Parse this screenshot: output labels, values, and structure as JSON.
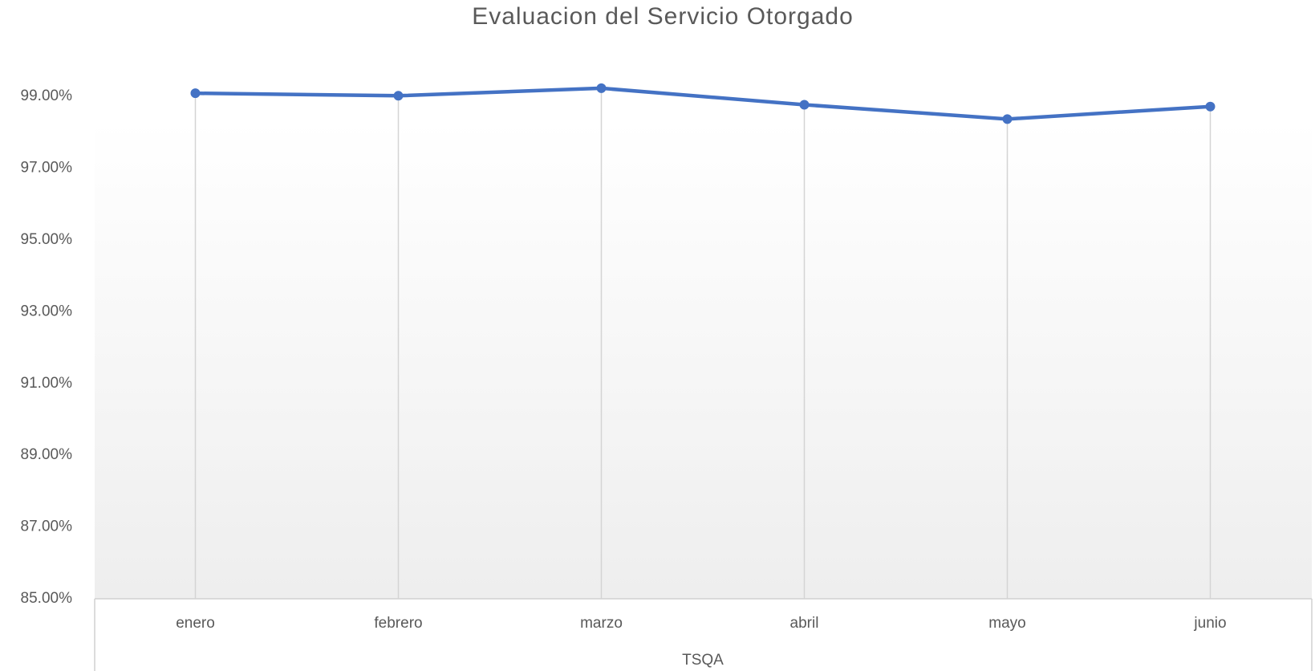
{
  "chart_data": {
    "type": "line",
    "title": "Evaluacion del Servicio Otorgado",
    "x_label": "TSQA",
    "categories": [
      "enero",
      "febrero",
      "marzo",
      "abril",
      "mayo",
      "junio"
    ],
    "series": [
      {
        "name": "TSQA",
        "color": "#4472c4",
        "values": [
          99.09,
          99.02,
          99.23,
          98.77,
          98.37,
          98.72
        ]
      }
    ],
    "ylim": [
      85,
      100
    ],
    "yticks": [
      {
        "value": 85,
        "label": "85.00%"
      },
      {
        "value": 87,
        "label": "87.00%"
      },
      {
        "value": 89,
        "label": "89.00%"
      },
      {
        "value": 91,
        "label": "91.00%"
      },
      {
        "value": 93,
        "label": "93.00%"
      },
      {
        "value": 95,
        "label": "95.00%"
      },
      {
        "value": 97,
        "label": "97.00%"
      },
      {
        "value": 99,
        "label": "99.00%"
      }
    ],
    "drop_lines": true
  }
}
